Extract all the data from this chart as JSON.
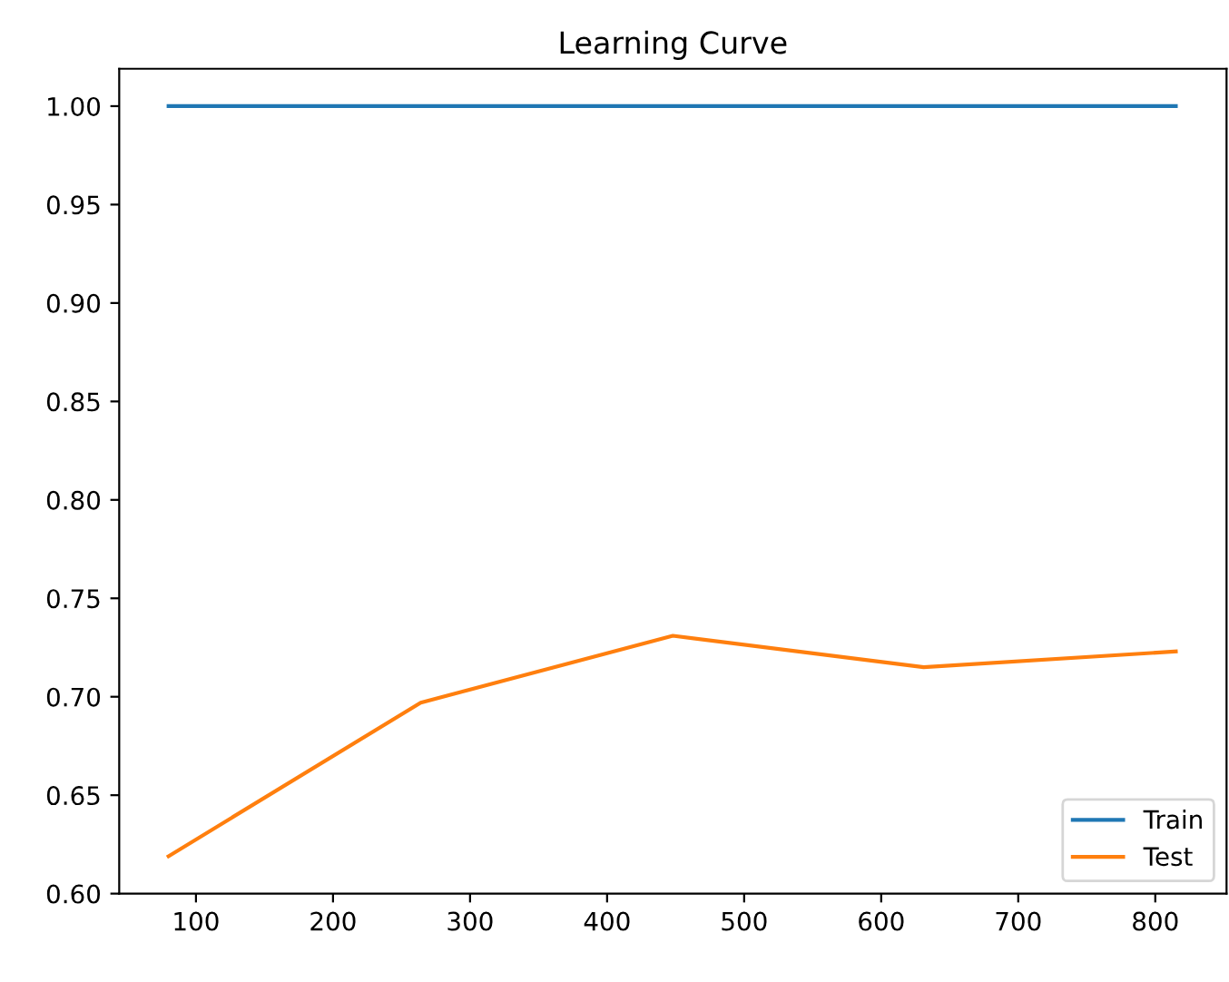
{
  "chart_data": {
    "type": "line",
    "title": "Learning Curve",
    "x": [
      80,
      264,
      448,
      631,
      815
    ],
    "series": [
      {
        "name": "Train",
        "color": "#1f77b4",
        "values": [
          1.0,
          1.0,
          1.0,
          1.0,
          1.0
        ]
      },
      {
        "name": "Test",
        "color": "#ff7f0e",
        "values": [
          0.619,
          0.697,
          0.731,
          0.715,
          0.723
        ]
      }
    ],
    "xlim": [
      44,
      852
    ],
    "xticks": [
      100,
      200,
      300,
      400,
      500,
      600,
      700,
      800
    ],
    "ylim": [
      0.6,
      1.019
    ],
    "yticks": [
      {
        "value": 0.6,
        "label": "0.60"
      },
      {
        "value": 0.65,
        "label": "0.65"
      },
      {
        "value": 0.7,
        "label": "0.70"
      },
      {
        "value": 0.75,
        "label": "0.75"
      },
      {
        "value": 0.8,
        "label": "0.80"
      },
      {
        "value": 0.85,
        "label": "0.85"
      },
      {
        "value": 0.9,
        "label": "0.90"
      },
      {
        "value": 0.95,
        "label": "0.95"
      },
      {
        "value": 1.0,
        "label": "1.00"
      }
    ],
    "legend": "lower right",
    "grid": false
  }
}
